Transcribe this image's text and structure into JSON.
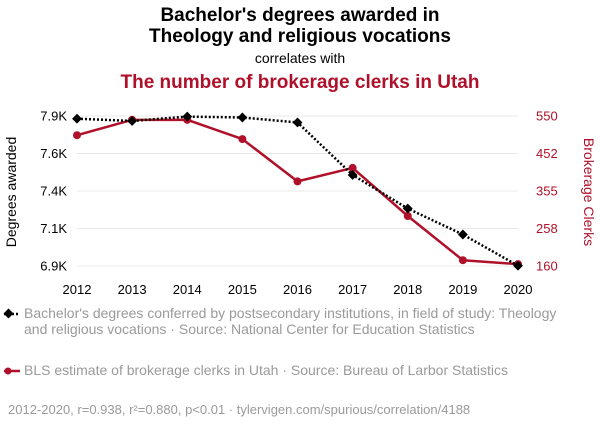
{
  "colors": {
    "series1": "#000000",
    "series2": "#b0112a",
    "grid": "#e8e8e8",
    "muted": "#9a9a9a"
  },
  "chart_data": {
    "type": "line",
    "title_line1": "Bachelor's degrees awarded in",
    "title_line2": "Theology and religious vocations",
    "connector": "correlates with",
    "title2": "The number of brokerage clerks in Utah",
    "x": [
      "2012",
      "2013",
      "2014",
      "2015",
      "2016",
      "2017",
      "2018",
      "2019",
      "2020"
    ],
    "left_axis": {
      "label": "Degrees awarded",
      "ticks": [
        "6.9K",
        "7.1K",
        "7.4K",
        "7.6K",
        "7.9K"
      ],
      "tick_values": [
        6900,
        7150,
        7400,
        7650,
        7900
      ],
      "range": [
        6900,
        7900
      ]
    },
    "right_axis": {
      "label": "Brokerage Clerks",
      "ticks": [
        "160",
        "258",
        "355",
        "452",
        "550"
      ],
      "tick_values": [
        160,
        257.5,
        355,
        452.5,
        550
      ],
      "range": [
        160,
        550
      ]
    },
    "grid": true,
    "series": [
      {
        "name": "Bachelor's degrees conferred by postsecondary institutions, in field of study: Theology and religious vocations · Source: National Center for Education Statistics",
        "axis": "left",
        "values": [
          7882,
          7867,
          7896,
          7890,
          7857,
          7507,
          7283,
          7110,
          6902
        ]
      },
      {
        "name": "BLS estimate of brokerage clerks in Utah · Source: Bureau of Larbor Statistics",
        "axis": "right",
        "values": [
          500,
          540,
          540,
          490,
          380,
          415,
          290,
          175,
          165
        ]
      }
    ],
    "footer": "2012-2020, r=0.938, r²=0.880, p<0.01 · tylervigen.com/spurious/correlation/4188"
  }
}
